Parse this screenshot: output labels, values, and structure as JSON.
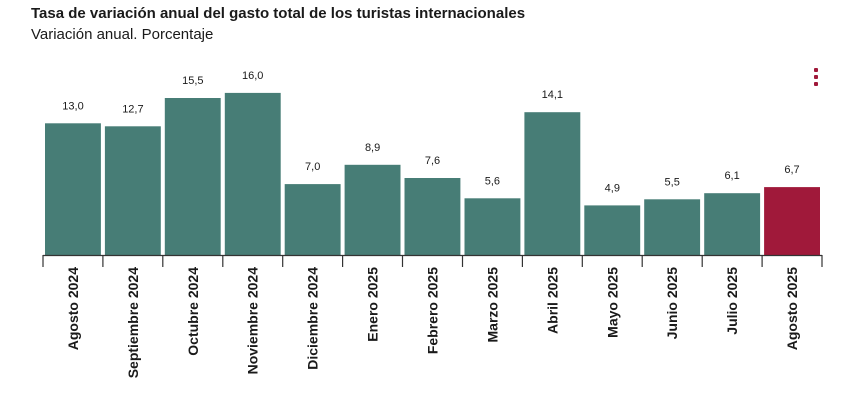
{
  "header": {
    "title": "Tasa de variación anual del gasto total de los turistas internacionales",
    "subtitle": "Variación anual. Porcentaje"
  },
  "menu": {
    "icon": "vertical-ellipsis-icon",
    "color": "#a0193a"
  },
  "chart_data": {
    "type": "bar",
    "categories": [
      "Agosto 2024",
      "Septiembre 2024",
      "Octubre 2024",
      "Noviembre 2024",
      "Diciembre 2024",
      "Enero 2025",
      "Febrero 2025",
      "Marzo 2025",
      "Abril 2025",
      "Mayo 2025",
      "Junio 2025",
      "Julio 2025",
      "Agosto 2025"
    ],
    "values": [
      13.0,
      12.7,
      15.5,
      16.0,
      7.0,
      8.9,
      7.6,
      5.6,
      14.1,
      4.9,
      5.5,
      6.1,
      6.7
    ],
    "labels": [
      "13,0",
      "12,7",
      "15,5",
      "16,0",
      "7,0",
      "8,9",
      "7,6",
      "5,6",
      "14,1",
      "4,9",
      "5,5",
      "6,1",
      "6,7"
    ],
    "title": "Tasa de variación anual del gasto total de los turistas internacionales",
    "subtitle": "Variación anual. Porcentaje",
    "ylim": [
      0,
      16
    ],
    "grid": false,
    "legend": "none",
    "colors": {
      "default": "#477d76",
      "highlight": "#a0193a"
    },
    "highlight_index": 12
  }
}
